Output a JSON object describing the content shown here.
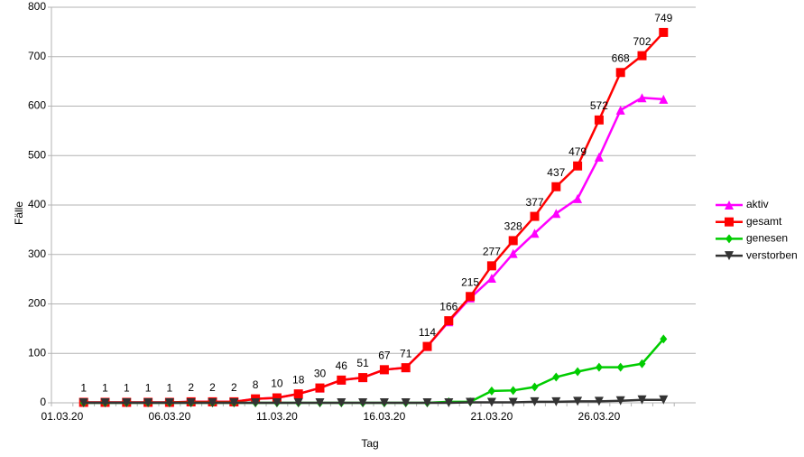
{
  "chart_data": {
    "type": "line",
    "x_label": "Tag",
    "y_label": "Fälle",
    "categories": [
      "01.03.20",
      null,
      null,
      null,
      null,
      "06.03.20",
      null,
      null,
      null,
      null,
      "11.03.20",
      null,
      null,
      null,
      null,
      "16.03.20",
      null,
      null,
      null,
      null,
      "21.03.20",
      null,
      null,
      null,
      null,
      "26.03.20",
      null,
      null,
      null,
      null
    ],
    "ylim": [
      0,
      800
    ],
    "yticks": [
      0,
      100,
      200,
      300,
      400,
      500,
      600,
      700,
      800
    ],
    "grid": true,
    "legend": "right",
    "series": [
      {
        "name": "aktiv",
        "color": "#ff00ff",
        "marker": "triangle-up",
        "values": [
          null,
          1,
          1,
          1,
          1,
          1,
          2,
          2,
          2,
          8,
          10,
          18,
          30,
          46,
          51,
          67,
          71,
          114,
          164,
          212,
          252,
          302,
          343,
          383,
          413,
          497,
          592,
          617,
          614,
          null
        ]
      },
      {
        "name": "gesamt",
        "color": "#ff0000",
        "marker": "square",
        "show_values": true,
        "values": [
          null,
          1,
          1,
          1,
          1,
          1,
          2,
          2,
          2,
          8,
          10,
          18,
          30,
          46,
          51,
          67,
          71,
          114,
          166,
          215,
          277,
          328,
          377,
          437,
          479,
          572,
          668,
          702,
          749,
          null
        ]
      },
      {
        "name": "genesen",
        "color": "#00cc00",
        "marker": "diamond",
        "values": [
          null,
          0,
          0,
          0,
          0,
          0,
          0,
          0,
          0,
          0,
          0,
          0,
          0,
          0,
          0,
          0,
          0,
          0,
          2,
          2,
          24,
          25,
          32,
          52,
          63,
          72,
          72,
          79,
          129,
          null
        ]
      },
      {
        "name": "verstorben",
        "color": "#333333",
        "marker": "triangle-down",
        "values": [
          null,
          0,
          0,
          0,
          0,
          0,
          0,
          0,
          0,
          0,
          0,
          0,
          0,
          0,
          0,
          0,
          0,
          0,
          0,
          1,
          1,
          1,
          2,
          2,
          3,
          3,
          4,
          6,
          6,
          null
        ]
      }
    ]
  }
}
